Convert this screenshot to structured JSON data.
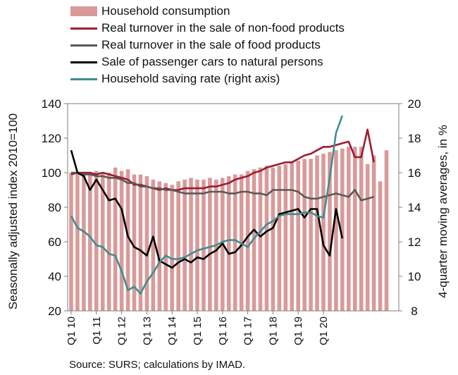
{
  "source": "Source: SURS; calculations by IMAD.",
  "chart_data": {
    "type": "bar",
    "x_ticks": [
      "Q1 10",
      "Q1 11",
      "Q1 12",
      "Q1 13",
      "Q1 14",
      "Q1 15",
      "Q1 16",
      "Q1 17",
      "Q1 18",
      "Q1 19",
      "Q1 20"
    ],
    "quarters_per_tick": 4,
    "y_left": {
      "label": "Seasonally adjusted index 2010=100",
      "lim": [
        20,
        140
      ],
      "ticks": [
        20,
        40,
        60,
        80,
        100,
        120,
        140
      ]
    },
    "y_right": {
      "label": "4-quarter moving averages, in %",
      "lim": [
        8,
        20
      ],
      "ticks": [
        8,
        10,
        12,
        14,
        16,
        18,
        20
      ]
    },
    "series": [
      {
        "name": "Household consumption",
        "kind": "bar",
        "axis": "left",
        "color": "#D99A9A",
        "values": [
          100,
          100,
          100,
          100,
          101,
          100,
          100,
          103,
          101,
          102,
          99,
          99,
          98,
          96,
          95,
          94,
          93,
          95,
          96,
          97,
          96,
          96,
          97,
          96,
          97,
          98,
          99,
          99,
          101,
          102,
          103,
          104,
          103,
          104,
          105,
          106,
          107,
          108,
          108,
          110,
          111,
          112,
          113,
          114,
          115,
          115,
          115,
          105,
          110,
          95,
          113
        ]
      },
      {
        "name": "Real turnover in the sale of non-food products",
        "kind": "line",
        "axis": "left",
        "color": "#9E1B32",
        "values": [
          99,
          100,
          100,
          100,
          99,
          100,
          99,
          98,
          97,
          96,
          93,
          93,
          92,
          91,
          90,
          91,
          90,
          90,
          91,
          91,
          91,
          91,
          92,
          92,
          93,
          94,
          96,
          97,
          98,
          100,
          101,
          103,
          104,
          105,
          106,
          106,
          108,
          110,
          111,
          113,
          115,
          115,
          116,
          117,
          118,
          109,
          109,
          125,
          106
        ]
      },
      {
        "name": "Real turnover in the sale of food products",
        "kind": "line",
        "axis": "left",
        "color": "#595959",
        "values": [
          100,
          100,
          99,
          99,
          98,
          98,
          97,
          97,
          96,
          94,
          94,
          92,
          92,
          91,
          91,
          90,
          90,
          89,
          88,
          88,
          88,
          88,
          89,
          89,
          89,
          88,
          88,
          89,
          89,
          88,
          88,
          87,
          90,
          90,
          90,
          90,
          89,
          86,
          85,
          85,
          86,
          87,
          88,
          87,
          86,
          90,
          84,
          85,
          86
        ]
      },
      {
        "name": "Sale of passenger cars to natural persons",
        "kind": "line",
        "axis": "left",
        "color": "#000000",
        "values": [
          113,
          100,
          98,
          90,
          96,
          90,
          84,
          85,
          79,
          63,
          57,
          55,
          52,
          63,
          49,
          47,
          45,
          48,
          50,
          48,
          51,
          50,
          53,
          55,
          59,
          53,
          54,
          58,
          63,
          67,
          63,
          66,
          68,
          76,
          77,
          78,
          79,
          74,
          79,
          79,
          58,
          52,
          79,
          62
        ]
      },
      {
        "name": "Household saving rate (right axis)",
        "kind": "line",
        "axis": "right",
        "color": "#3F8E8E",
        "values": [
          13.5,
          12.8,
          12.6,
          12.3,
          11.8,
          11.7,
          11.3,
          11.2,
          10.3,
          9.2,
          9.4,
          9.0,
          9.7,
          10.2,
          10.8,
          11.2,
          11.0,
          11.0,
          11.1,
          11.3,
          11.5,
          11.6,
          11.7,
          11.8,
          12.0,
          12.1,
          12.1,
          11.9,
          11.7,
          12.2,
          12.6,
          13.0,
          13.2,
          13.5,
          13.6,
          13.6,
          13.6,
          13.7,
          13.7,
          13.5,
          13.4,
          15.7,
          18.3,
          19.3
        ]
      }
    ],
    "legend_position": "top"
  }
}
